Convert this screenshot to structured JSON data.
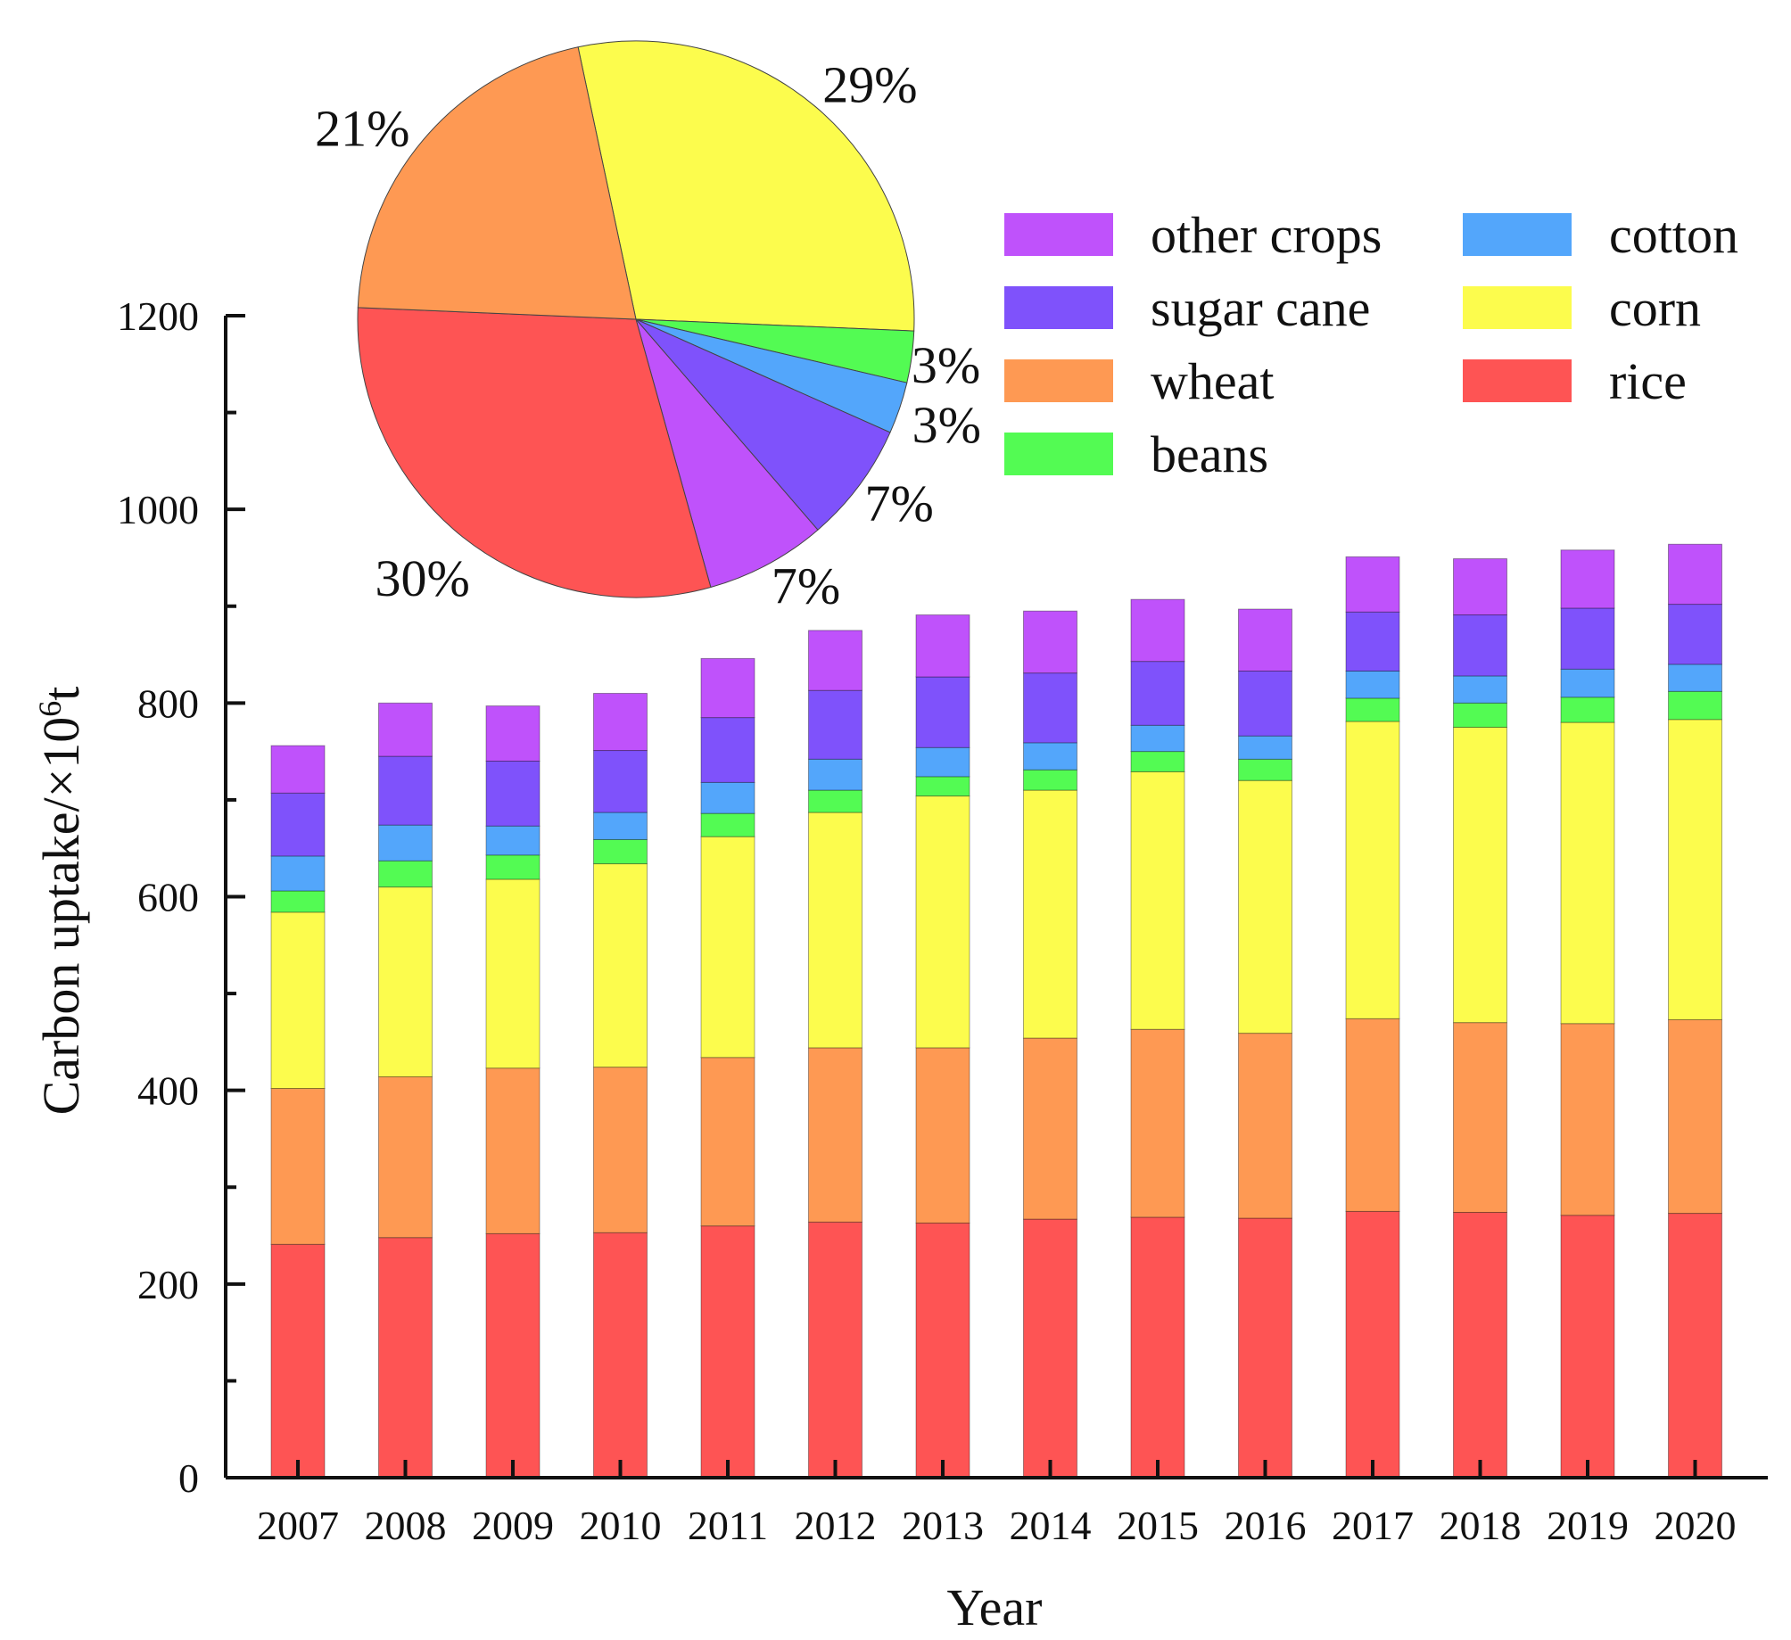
{
  "colors": {
    "rice": "#fe5454",
    "wheat": "#fe9953",
    "corn": "#fcfc4d",
    "beans": "#53fb53",
    "cotton": "#53a6fb",
    "sugar_cane": "#7f52fb",
    "other_crops": "#bf52fb"
  },
  "chart_data": [
    {
      "type": "bar",
      "stacked": true,
      "xlabel": "Year",
      "ylabel": "Carbon uptake/×10",
      "ylabel_sup": "6",
      "ylabel_suffix": "t",
      "ylim": [
        0,
        1200
      ],
      "yticks": [
        "0",
        "200",
        "400",
        "600",
        "800",
        "1000",
        "1200"
      ],
      "categories": [
        "2007",
        "2008",
        "2009",
        "2010",
        "2011",
        "2012",
        "2013",
        "2014",
        "2015",
        "2016",
        "2017",
        "2018",
        "2019",
        "2020"
      ],
      "series": [
        {
          "key": "rice",
          "name": "rice",
          "values": [
            241,
            248,
            252,
            253,
            260,
            264,
            263,
            267,
            269,
            268,
            275,
            274,
            271,
            273
          ]
        },
        {
          "key": "wheat",
          "name": "wheat",
          "values": [
            161,
            166,
            171,
            171,
            174,
            180,
            181,
            187,
            194,
            191,
            199,
            196,
            198,
            200
          ]
        },
        {
          "key": "corn",
          "name": "corn",
          "values": [
            182,
            196,
            195,
            210,
            228,
            243,
            260,
            256,
            266,
            261,
            307,
            305,
            311,
            310
          ]
        },
        {
          "key": "beans",
          "name": "beans",
          "values": [
            22,
            27,
            25,
            25,
            24,
            23,
            20,
            21,
            21,
            22,
            24,
            25,
            26,
            29
          ]
        },
        {
          "key": "cotton",
          "name": "cotton",
          "values": [
            36,
            37,
            30,
            28,
            32,
            32,
            30,
            28,
            27,
            24,
            28,
            28,
            29,
            28
          ]
        },
        {
          "key": "sugar_cane",
          "name": "sugar cane",
          "values": [
            65,
            71,
            67,
            64,
            67,
            71,
            73,
            72,
            66,
            67,
            61,
            63,
            63,
            62
          ]
        },
        {
          "key": "other_crops",
          "name": "other crops",
          "values": [
            49,
            55,
            57,
            59,
            61,
            62,
            64,
            64,
            64,
            64,
            57,
            58,
            60,
            62
          ]
        }
      ]
    },
    {
      "type": "pie",
      "slices": [
        {
          "key": "corn",
          "label": "29%",
          "value": 29
        },
        {
          "key": "beans",
          "label": "3%",
          "value": 3
        },
        {
          "key": "cotton",
          "label": "3%",
          "value": 3
        },
        {
          "key": "sugar_cane",
          "label": "7%",
          "value": 7
        },
        {
          "key": "other_crops",
          "label": "7%",
          "value": 7
        },
        {
          "key": "rice",
          "label": "30%",
          "value": 30
        },
        {
          "key": "wheat",
          "label": "21%",
          "value": 21
        }
      ]
    }
  ],
  "legend": {
    "items": [
      {
        "key": "other_crops",
        "label": "other crops"
      },
      {
        "key": "cotton",
        "label": "cotton"
      },
      {
        "key": "sugar_cane",
        "label": "sugar cane"
      },
      {
        "key": "corn",
        "label": "corn"
      },
      {
        "key": "wheat",
        "label": "wheat"
      },
      {
        "key": "rice",
        "label": "rice"
      },
      {
        "key": "beans",
        "label": "beans"
      }
    ]
  }
}
